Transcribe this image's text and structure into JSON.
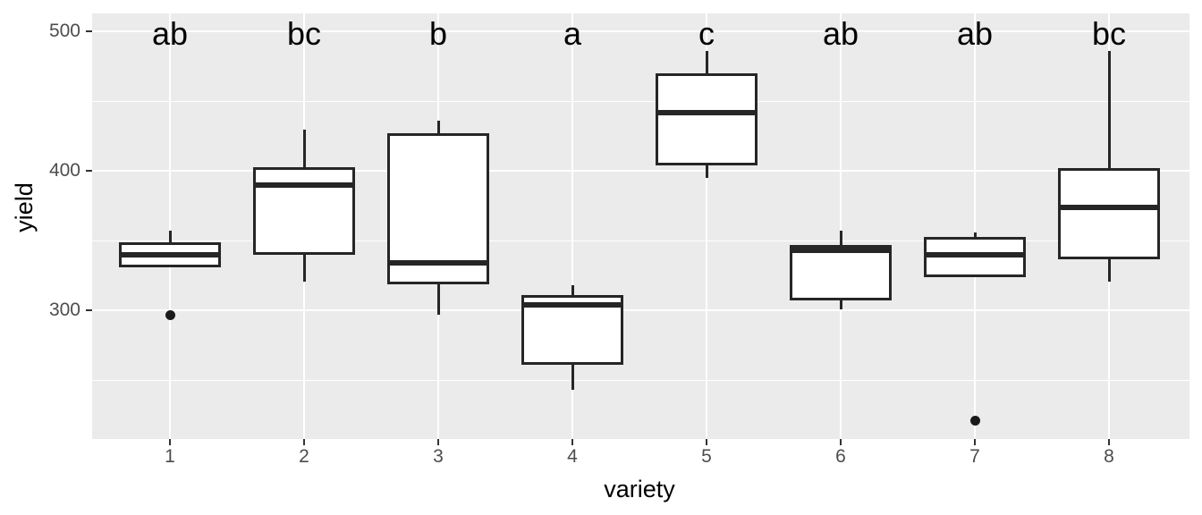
{
  "chart_data": {
    "type": "boxplot",
    "title": "",
    "xlabel": "variety",
    "ylabel": "yield",
    "categories": [
      "1",
      "2",
      "3",
      "4",
      "5",
      "6",
      "7",
      "8"
    ],
    "significance_letters": [
      "ab",
      "bc",
      "b",
      "a",
      "c",
      "ab",
      "ab",
      "bc"
    ],
    "letters_y_value": 500,
    "boxes": [
      {
        "category": "1",
        "letter": "ab",
        "whisker_low": 332,
        "q1": 332,
        "median": 340,
        "q3": 348,
        "whisker_high": 357,
        "outliers": [
          297
        ]
      },
      {
        "category": "2",
        "letter": "bc",
        "whisker_low": 321,
        "q1": 341,
        "median": 390,
        "q3": 402,
        "whisker_high": 430,
        "outliers": []
      },
      {
        "category": "3",
        "letter": "b",
        "whisker_low": 297,
        "q1": 320,
        "median": 334,
        "q3": 426,
        "whisker_high": 436,
        "outliers": []
      },
      {
        "category": "4",
        "letter": "a",
        "whisker_low": 243,
        "q1": 262,
        "median": 304,
        "q3": 310,
        "whisker_high": 318,
        "outliers": []
      },
      {
        "category": "5",
        "letter": "c",
        "whisker_low": 395,
        "q1": 405,
        "median": 442,
        "q3": 469,
        "whisker_high": 486,
        "outliers": []
      },
      {
        "category": "6",
        "letter": "ab",
        "whisker_low": 301,
        "q1": 308,
        "median": 343,
        "q3": 346,
        "whisker_high": 357,
        "outliers": []
      },
      {
        "category": "7",
        "letter": "ab",
        "whisker_low": 325,
        "q1": 325,
        "median": 340,
        "q3": 352,
        "whisker_high": 356,
        "outliers": [
          221
        ]
      },
      {
        "category": "8",
        "letter": "bc",
        "whisker_low": 321,
        "q1": 338,
        "median": 374,
        "q3": 401,
        "whisker_high": 486,
        "outliers": []
      }
    ],
    "y_axis": {
      "ticks": [
        300,
        400,
        500
      ],
      "minor_ticks": [
        250,
        350,
        450
      ],
      "range": [
        208,
        513
      ]
    },
    "x_axis": {
      "ticks": [
        "1",
        "2",
        "3",
        "4",
        "5",
        "6",
        "7",
        "8"
      ]
    },
    "grid": "major+minor, white on gray",
    "legend": "none",
    "colors": {
      "panel_background": "#EBEBEB",
      "gridline": "#FFFFFF",
      "box_stroke": "#262626",
      "box_fill": "#FFFFFF",
      "outlier": "#1A1A1A",
      "tick_label": "#4D4D4D",
      "axis_title": "#000000",
      "tick_mark": "#333333"
    }
  }
}
